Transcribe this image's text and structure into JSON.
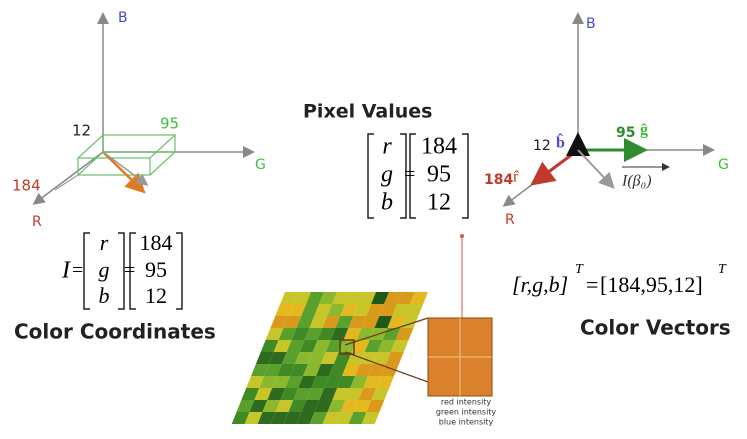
{
  "left_panel": {
    "axes": {
      "b": "B",
      "g": "G",
      "r": "R"
    },
    "values": {
      "b": 12,
      "g": 95,
      "r": 184
    },
    "equation": {
      "symbol": "I",
      "vector": [
        "r",
        "g",
        "b"
      ],
      "values": [
        184,
        95,
        12
      ]
    },
    "caption": "Color Coordinates"
  },
  "center_panel": {
    "title": "Pixel Values",
    "vector": [
      "r",
      "g",
      "b"
    ],
    "values": [
      184,
      95,
      12
    ],
    "legend": [
      "red intensity",
      "green intensity",
      "blue intensity"
    ]
  },
  "right_panel": {
    "axes": {
      "b": "B",
      "g": "G",
      "r": "R"
    },
    "components": {
      "b": {
        "value": 12,
        "unit": "b̂"
      },
      "g": {
        "value": 95,
        "unit": "ĝ"
      },
      "r": {
        "value": 184,
        "unit": "r̂"
      }
    },
    "vector_label": "I(β₀)",
    "equation": {
      "lhs": "[r,g,b]",
      "lhs_sup": "T",
      "equals": "=",
      "rhs": "[184,95,12]",
      "rhs_sup": "T"
    },
    "caption": "Color Vectors"
  }
}
